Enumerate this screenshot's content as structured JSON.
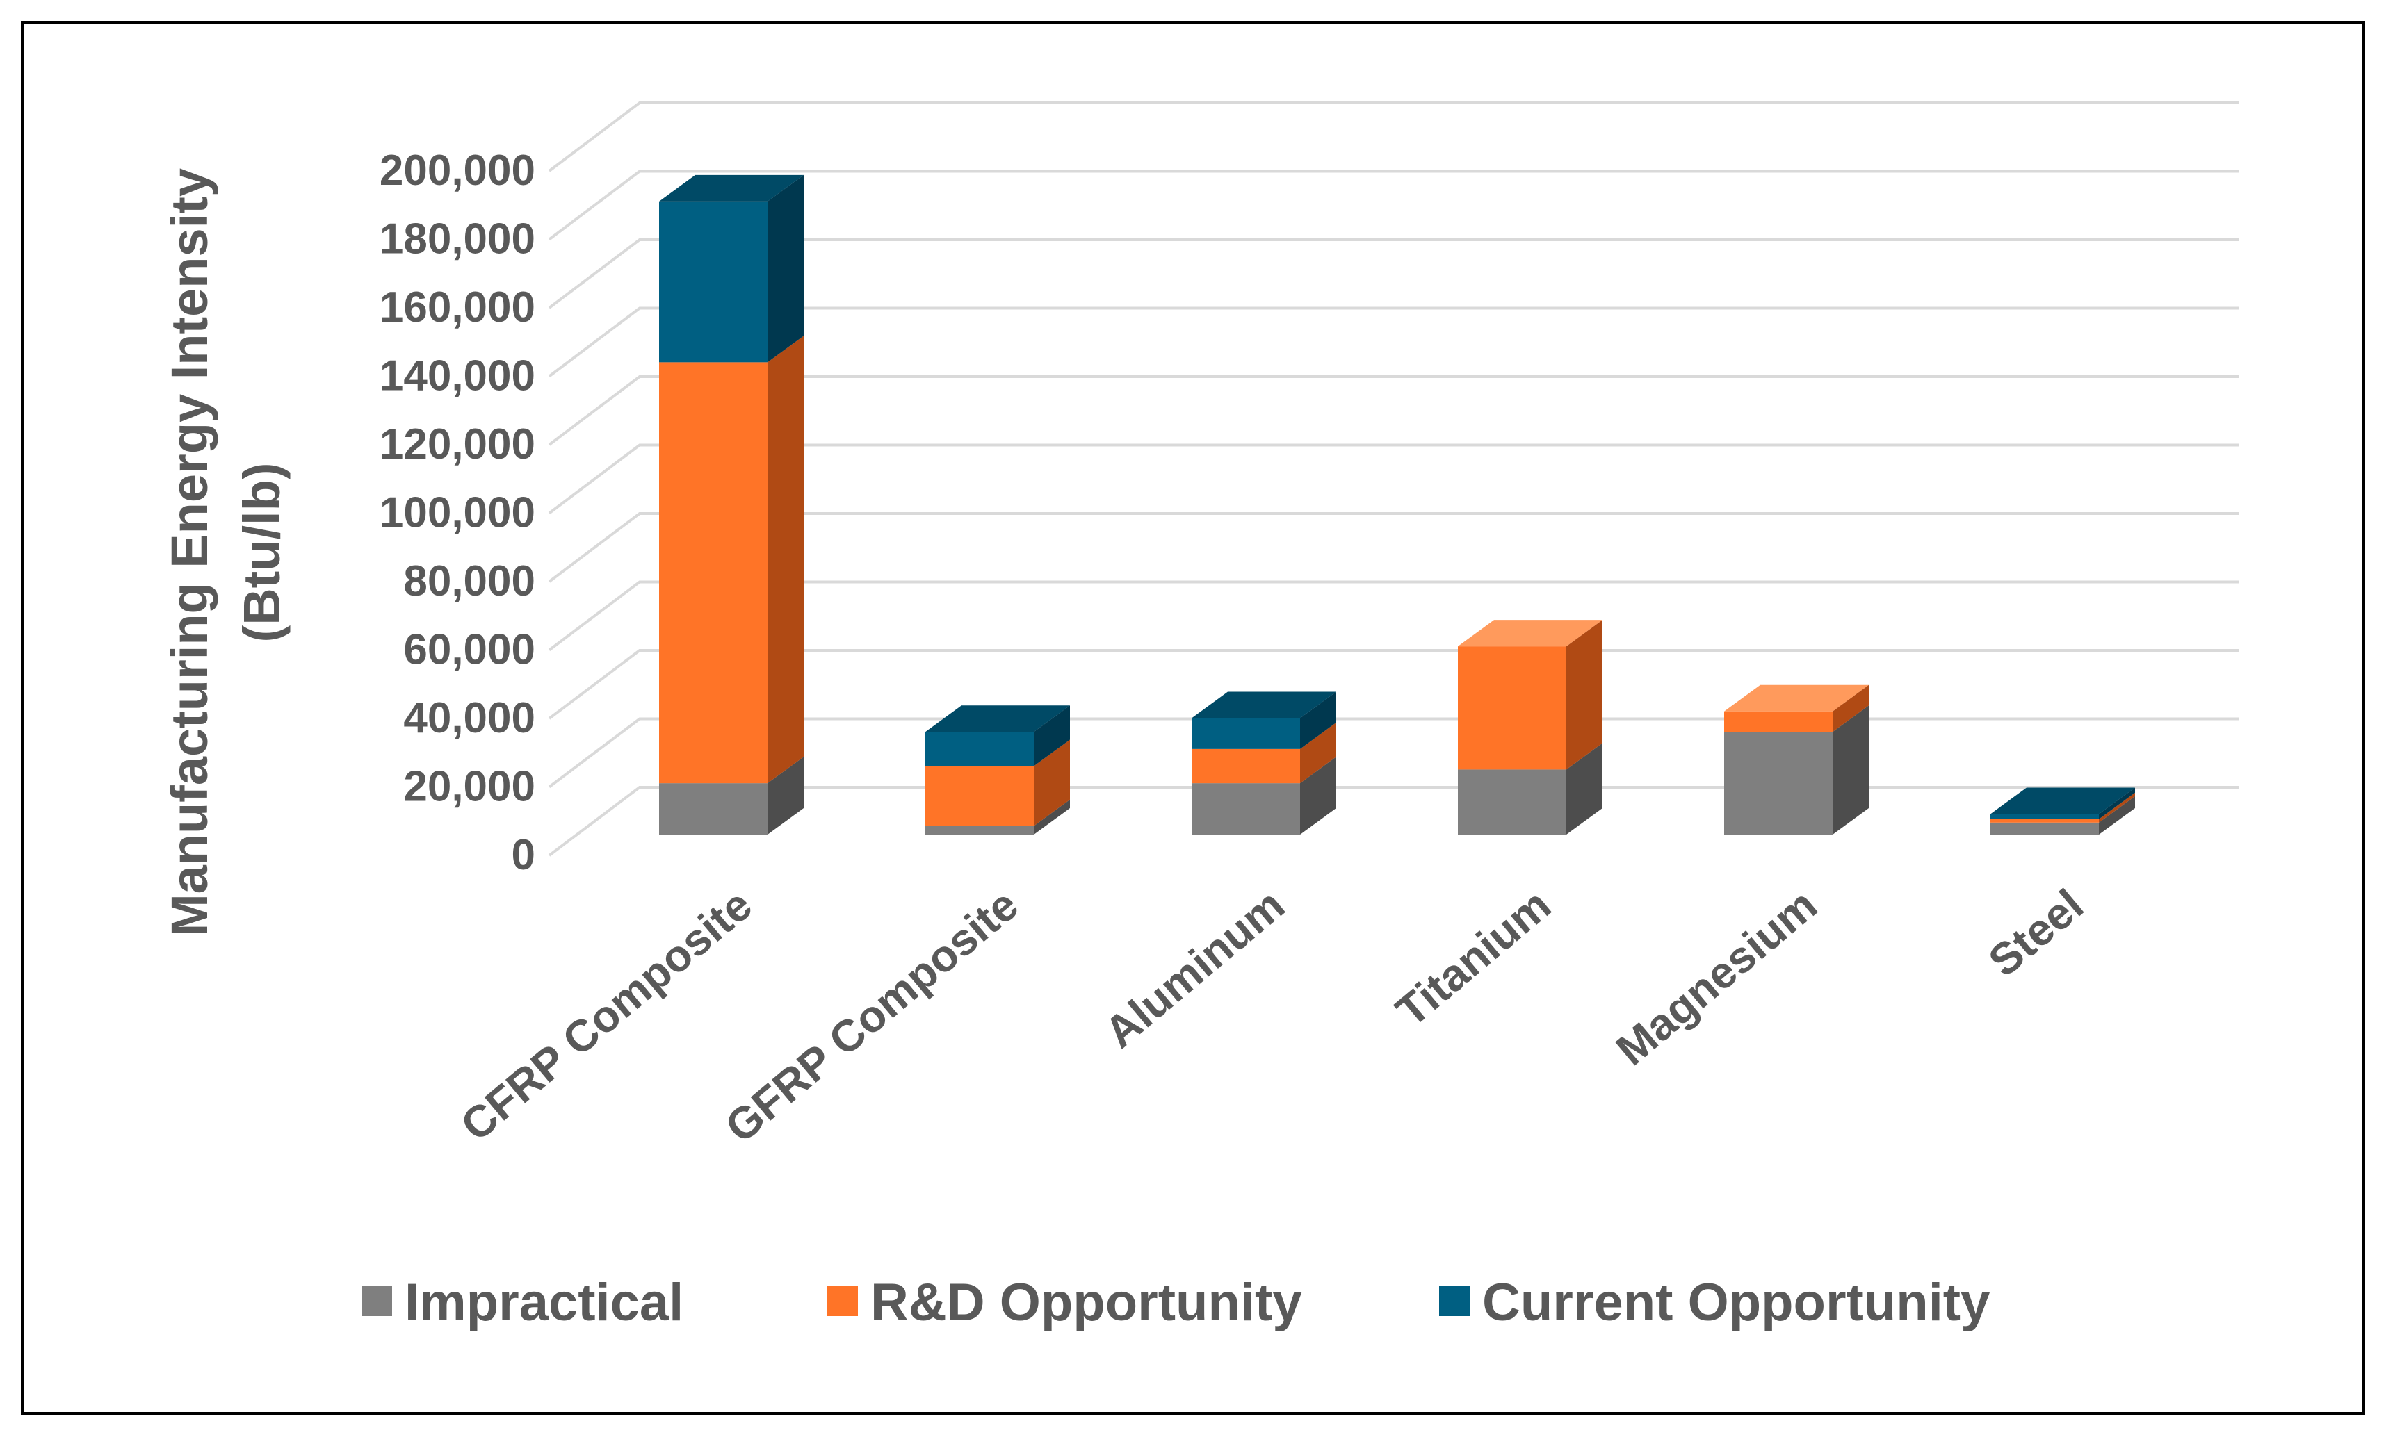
{
  "chart_data": {
    "type": "bar",
    "stacked": true,
    "three_d": true,
    "title": "",
    "xlabel": "",
    "ylabel_lines": [
      "Manufacturing Energy Intensity",
      "(Btu/lb)"
    ],
    "ylim": [
      0,
      200000
    ],
    "y_ticks": [
      0,
      20000,
      40000,
      60000,
      80000,
      100000,
      120000,
      140000,
      160000,
      180000,
      200000
    ],
    "y_tick_labels": [
      "0",
      "20,000",
      "40,000",
      "60,000",
      "80,000",
      "100,000",
      "120,000",
      "140,000",
      "160,000",
      "180,000",
      "200,000"
    ],
    "grid": true,
    "legend_position": "bottom",
    "categories": [
      "CFRP Composite",
      "GFRP Composite",
      "Aluminum",
      "Titanium",
      "Magnesium",
      "Steel"
    ],
    "series": [
      {
        "name": "Impractical",
        "color": "#7f7f7f",
        "side_color": "#4d4d4d",
        "top_color": "#9a9a9a",
        "values": [
          15000,
          2500,
          15000,
          19000,
          30000,
          3500
        ]
      },
      {
        "name": "R&D Opportunity",
        "color": "#ff7427",
        "side_color": "#b04a14",
        "top_color": "#ff9a5c",
        "values": [
          123000,
          17500,
          10000,
          36000,
          6000,
          1000
        ]
      },
      {
        "name": "Current Opportunity",
        "color": "#005f82",
        "side_color": "#00384f",
        "top_color": "#004a66",
        "values": [
          47000,
          10000,
          9000,
          0,
          0,
          1500
        ]
      }
    ]
  },
  "legend": {
    "items": [
      {
        "label": "Impractical",
        "color": "#7f7f7f"
      },
      {
        "label": "R&D Opportunity",
        "color": "#ff7427"
      },
      {
        "label": "Current Opportunity",
        "color": "#005f82"
      }
    ]
  }
}
